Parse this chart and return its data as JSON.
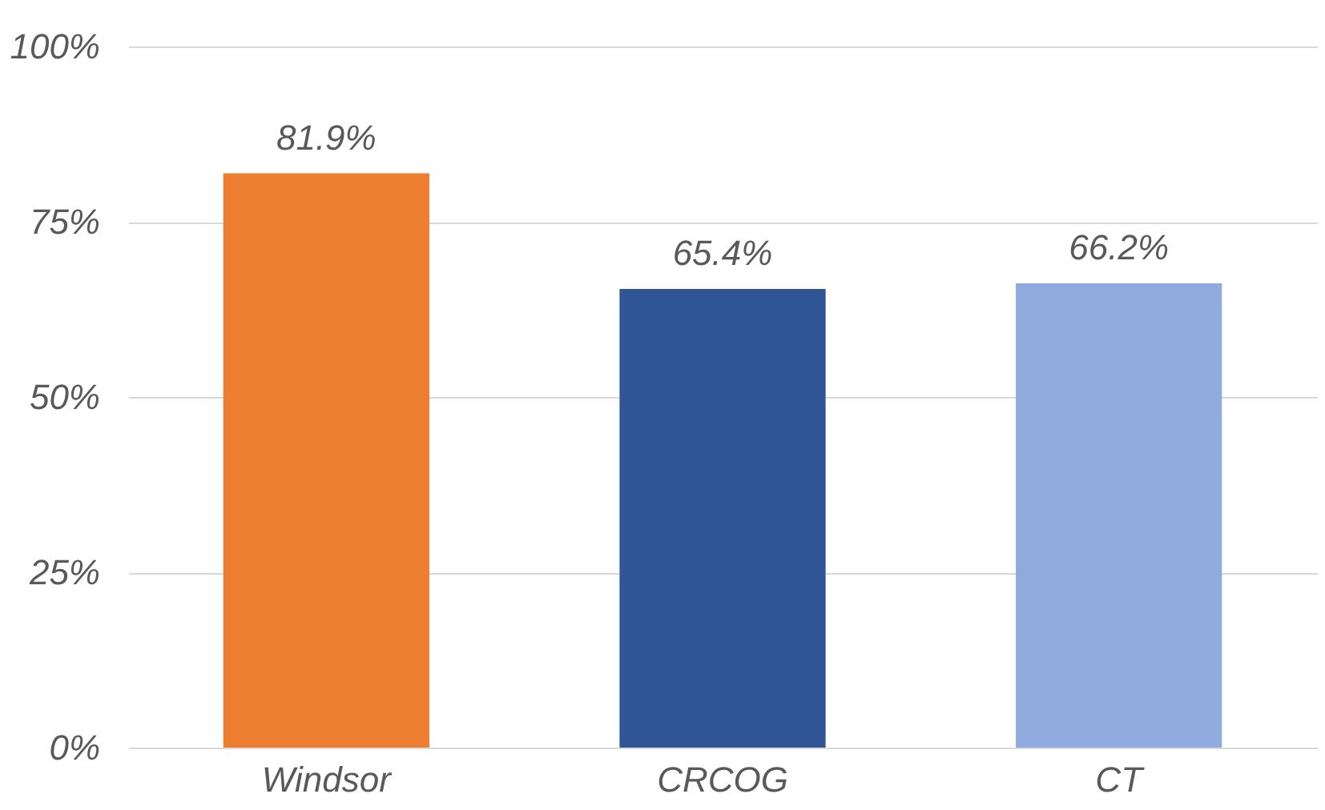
{
  "chart_data": {
    "type": "bar",
    "categories": [
      "Windsor",
      "CRCOG",
      "CT"
    ],
    "values": [
      81.9,
      65.4,
      66.2
    ],
    "colors": [
      "#ed7d31",
      "#2f5597",
      "#8faadc"
    ],
    "value_labels": [
      "81.9%",
      "65.4%",
      "66.2%"
    ],
    "ylim": [
      0,
      100
    ],
    "yticks": [
      {
        "value": 0,
        "label": "0%"
      },
      {
        "value": 25,
        "label": "25%"
      },
      {
        "value": 50,
        "label": "50%"
      },
      {
        "value": 75,
        "label": "75%"
      },
      {
        "value": 100,
        "label": "100%"
      }
    ],
    "grid": "y"
  }
}
